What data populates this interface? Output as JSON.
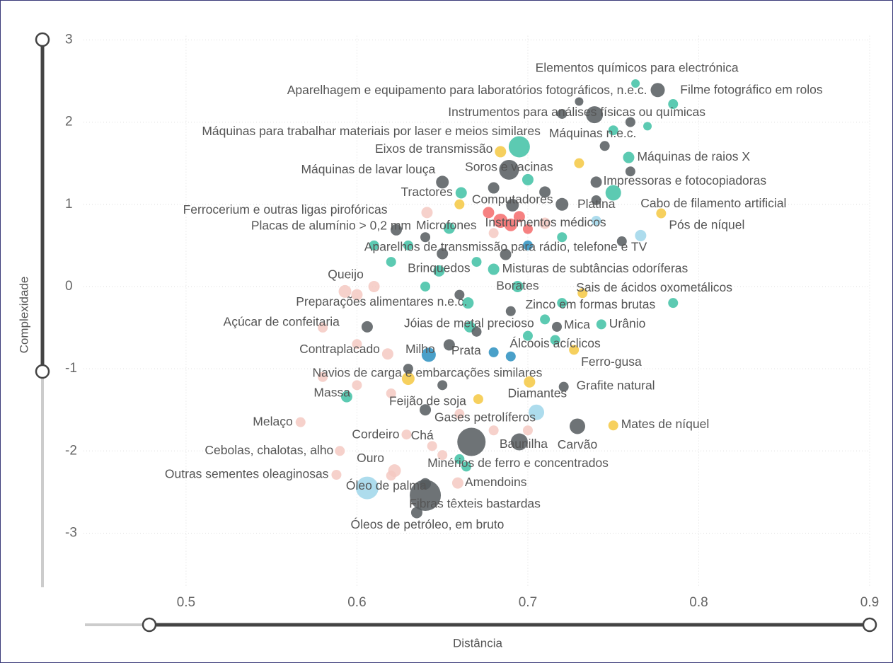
{
  "chart_data": {
    "type": "scatter",
    "x_label": "Distância",
    "y_label": "Complexidade",
    "xlim": [
      0.44,
      0.9
    ],
    "ylim": [
      -3.65,
      3.05
    ],
    "xticks": [
      0.5,
      0.6,
      0.7,
      0.8,
      0.9
    ],
    "yticks": [
      -3,
      -2,
      -1,
      0,
      1,
      2,
      3
    ],
    "grid": true,
    "labels": [
      "Elementos químicos para electrónica",
      "Aparelhagem e equipamento para laboratórios fotográficos, n.e.c.",
      "Filme fotográfico em rolos",
      "Instrumentos para análises físicas ou químicas",
      "Máquinas para trabalhar materiais por laser e meios similares",
      "Máquinas n.e.c.",
      "Eixos de transmissão",
      "Máquinas de raios X",
      "Máquinas de lavar louça",
      "Soros e vacinas",
      "Tractores",
      "Impressoras e fotocopiadoras",
      "Computadores",
      "Platina",
      "Cabo de filamento artificial",
      "Ferrocerium e outras ligas pirofóricas",
      "Instrumentos médicos",
      "Pós de níquel",
      "Placas de alumínio > 0,2 mm",
      "Microfones",
      "Aparelhos de transmissão para rádio, telefone e TV",
      "Queijo",
      "Brinquedos",
      "Misturas de subtâncias odoríferas",
      "Borates",
      "Sais de ácidos oxometálicos",
      "Preparações alimentares n.e.c.",
      "Zinco em formas brutas",
      "Açúcar de confeitaria",
      "Jóias de metal precioso",
      "Mica",
      "Urânio",
      "Álcoois acíclicos",
      "Contraplacado",
      "Milho",
      "Prata",
      "Ferro-gusa",
      "Navios de carga e embarcações similares",
      "Grafite natural",
      "Massa",
      "Feijão de soja",
      "Diamantes",
      "Gases petrolíferos",
      "Melaço",
      "Mates de níquel",
      "Cordeiro",
      "Chá",
      "Baunilha",
      "Carvão",
      "Cebolas, chalotas, alho",
      "Ouro",
      "Minérios de ferro e concentrados",
      "Outras sementes oleaginosas",
      "Óleo de palma",
      "Amendoins",
      "Fibras têxteis bastardas",
      "Óleos de petróleo, em bruto",
      null,
      null,
      null,
      null,
      null,
      null,
      null,
      null,
      null,
      null,
      null,
      null,
      null,
      null,
      null,
      null,
      null,
      null,
      null,
      null,
      null,
      null,
      null,
      null,
      null,
      null,
      null,
      null,
      null,
      null,
      null,
      null,
      null,
      null,
      null,
      null,
      null,
      null,
      null,
      null,
      null,
      null,
      null,
      null,
      null,
      null,
      null,
      null,
      null,
      null,
      null,
      null,
      null,
      null,
      null,
      null
    ],
    "x": [
      0.763,
      0.776,
      0.785,
      0.739,
      0.695,
      0.745,
      0.684,
      0.759,
      0.65,
      0.689,
      0.661,
      0.74,
      0.691,
      0.75,
      0.778,
      0.641,
      0.71,
      0.766,
      0.623,
      0.654,
      0.687,
      0.593,
      0.648,
      0.68,
      0.694,
      0.732,
      0.665,
      0.785,
      0.606,
      0.666,
      0.717,
      0.743,
      0.716,
      0.618,
      0.642,
      0.654,
      0.727,
      0.63,
      0.721,
      0.594,
      0.671,
      0.701,
      0.705,
      0.567,
      0.75,
      0.629,
      0.644,
      0.695,
      0.729,
      0.59,
      0.622,
      0.664,
      0.588,
      0.606,
      0.659,
      0.64,
      0.635,
      0.667,
      0.684,
      0.69,
      0.677,
      0.695,
      0.7,
      0.68,
      0.72,
      0.71,
      0.7,
      0.73,
      0.75,
      0.77,
      0.76,
      0.72,
      0.73,
      0.68,
      0.66,
      0.64,
      0.63,
      0.65,
      0.67,
      0.7,
      0.72,
      0.74,
      0.76,
      0.62,
      0.61,
      0.64,
      0.66,
      0.69,
      0.71,
      0.6,
      0.61,
      0.58,
      0.6,
      0.62,
      0.63,
      0.65,
      0.68,
      0.69,
      0.7,
      0.72,
      0.64,
      0.66,
      0.68,
      0.62,
      0.65,
      0.64,
      0.66,
      0.7,
      0.58,
      0.6,
      0.67,
      0.74,
      0.755
    ],
    "values": [
      2.47,
      2.39,
      2.22,
      2.09,
      1.7,
      1.71,
      1.64,
      1.57,
      1.27,
      1.42,
      1.14,
      1.27,
      0.99,
      1.14,
      0.89,
      0.9,
      0.77,
      0.62,
      0.69,
      0.71,
      0.39,
      -0.06,
      0.19,
      0.21,
      0.0,
      -0.08,
      -0.2,
      -0.2,
      -0.49,
      -0.49,
      -0.49,
      -0.46,
      -0.65,
      -0.82,
      -0.83,
      -0.71,
      -0.77,
      -1.12,
      -1.22,
      -1.34,
      -1.37,
      -1.16,
      -1.53,
      -1.65,
      -1.69,
      -1.8,
      -1.94,
      -1.89,
      -1.7,
      -2.0,
      -2.24,
      -2.19,
      -2.29,
      -2.45,
      -2.39,
      -2.54,
      -2.75,
      -1.89,
      0.8,
      0.75,
      0.9,
      0.85,
      0.7,
      0.65,
      1.0,
      1.15,
      1.3,
      1.5,
      1.9,
      1.95,
      2.0,
      2.1,
      2.25,
      1.2,
      1.0,
      0.6,
      0.5,
      0.4,
      0.3,
      0.5,
      0.6,
      0.8,
      1.4,
      0.3,
      0.5,
      0.0,
      -0.1,
      -0.3,
      -0.4,
      -0.1,
      0.0,
      -0.5,
      -0.7,
      -1.3,
      -1.0,
      -1.2,
      -0.8,
      -0.85,
      -0.6,
      -0.2,
      -1.5,
      -1.55,
      -1.75,
      -2.3,
      -2.05,
      -2.4,
      -2.1,
      -1.75,
      -1.1,
      -1.2,
      -0.55,
      1.05,
      0.55
    ],
    "sizes": [
      6,
      10,
      7,
      12,
      15,
      7,
      8,
      8,
      9,
      14,
      8,
      8,
      9,
      11,
      7,
      8,
      8,
      8,
      8,
      8,
      8,
      9,
      8,
      8,
      8,
      7,
      8,
      7,
      8,
      8,
      7,
      7,
      7,
      8,
      10,
      8,
      7,
      9,
      7,
      8,
      7,
      8,
      11,
      7,
      7,
      7,
      7,
      12,
      11,
      7,
      9,
      7,
      7,
      16,
      8,
      22,
      8,
      20,
      10,
      9,
      8,
      8,
      7,
      7,
      9,
      8,
      8,
      7,
      7,
      6,
      7,
      7,
      6,
      8,
      7,
      7,
      7,
      8,
      7,
      7,
      7,
      7,
      7,
      7,
      7,
      7,
      7,
      7,
      7,
      8,
      8,
      7,
      7,
      7,
      7,
      7,
      7,
      7,
      7,
      7,
      8,
      7,
      7,
      7,
      7,
      8,
      7,
      7,
      7,
      7,
      7,
      7,
      7
    ],
    "colors": [
      "#3fc1a5",
      "#555b5e",
      "#3fc1a5",
      "#555b5e",
      "#3fc1a5",
      "#555b5e",
      "#f5c842",
      "#3fc1a5",
      "#555b5e",
      "#555b5e",
      "#3fc1a5",
      "#555b5e",
      "#555b5e",
      "#3fc1a5",
      "#f5c842",
      "#f5c9c2",
      "#f5c9c2",
      "#9fd6ea",
      "#555b5e",
      "#3fc1a5",
      "#555b5e",
      "#f5c9c2",
      "#3fc1a5",
      "#3fc1a5",
      "#3fc1a5",
      "#f5c842",
      "#3fc1a5",
      "#3fc1a5",
      "#555b5e",
      "#3fc1a5",
      "#555b5e",
      "#3fc1a5",
      "#3fc1a5",
      "#f5c9c2",
      "#2a8fc0",
      "#555b5e",
      "#f5c842",
      "#f5c842",
      "#555b5e",
      "#3fc1a5",
      "#f5c842",
      "#f5c842",
      "#9fd6ea",
      "#f5c9c2",
      "#f5c842",
      "#f5c9c2",
      "#f5c9c2",
      "#555b5e",
      "#555b5e",
      "#f5c9c2",
      "#f5c9c2",
      "#3fc1a5",
      "#f5c9c2",
      "#9fd6ea",
      "#f5c9c2",
      "#555b5e",
      "#555b5e",
      "#555b5e",
      "#f46b6b",
      "#f46b6b",
      "#f46b6b",
      "#f46b6b",
      "#f46b6b",
      "#f5c9c2",
      "#555b5e",
      "#555b5e",
      "#3fc1a5",
      "#f5c842",
      "#3fc1a5",
      "#3fc1a5",
      "#555b5e",
      "#555b5e",
      "#555b5e",
      "#555b5e",
      "#f5c842",
      "#555b5e",
      "#3fc1a5",
      "#555b5e",
      "#3fc1a5",
      "#2a8fc0",
      "#3fc1a5",
      "#9fd6ea",
      "#555b5e",
      "#3fc1a5",
      "#3fc1a5",
      "#3fc1a5",
      "#555b5e",
      "#555b5e",
      "#3fc1a5",
      "#f5c9c2",
      "#f5c9c2",
      "#f5c9c2",
      "#f5c9c2",
      "#f5c9c2",
      "#555b5e",
      "#555b5e",
      "#2a8fc0",
      "#2a8fc0",
      "#3fc1a5",
      "#3fc1a5",
      "#555b5e",
      "#f5c9c2",
      "#f5c9c2",
      "#f5c9c2",
      "#f5c9c2",
      "#555b5e",
      "#3fc1a5",
      "#f5c9c2",
      "#f5c9c2",
      "#f5c9c2",
      "#555b5e",
      "#555b5e",
      "#555b5e"
    ]
  }
}
